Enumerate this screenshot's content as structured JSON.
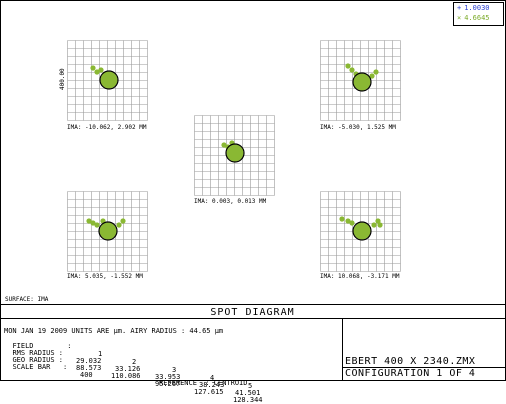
{
  "legend": {
    "rows": [
      {
        "marker": "+",
        "value": "1.0030",
        "color": "#2b3fd1"
      },
      {
        "marker": "×",
        "value": "4.6645",
        "color": "#7cab2a"
      }
    ]
  },
  "spots": [
    {
      "label": "IMA: -10.062, 2.902 MM"
    },
    {
      "label": "IMA: -5.030, 1.525 MM"
    },
    {
      "label": "IMA: 0.003, 0.013 MM"
    },
    {
      "label": "IMA: 5.035, -1.552 MM"
    },
    {
      "label": "IMA: 10.068, -3.171 MM"
    }
  ],
  "scale_label": "400.00",
  "surface": "SURFACE: IMA",
  "title": "SPOT DIAGRAM",
  "info": {
    "line1": "MON JAN 19 2009  UNITS ARE µm.  AIRY RADIUS : 44.65 µm",
    "field_label": "FIELD        :",
    "field_values": [
      "1",
      "2",
      "3",
      "4",
      "5"
    ],
    "rms_label": "RMS RADIUS :",
    "rms_values": [
      "29.032",
      "33.126",
      "33.953",
      "38.243",
      "41.501"
    ],
    "geo_label": "GEO RADIUS :",
    "geo_values": [
      "88.573",
      "110.086",
      "95.267",
      "127.615",
      "128.344"
    ],
    "scale_label": "SCALE BAR   :",
    "scale_value": "400",
    "reference": "REFERENCE  : CENTROID"
  },
  "lens": {
    "name": "EBERT 400 X 2340.ZMX",
    "config": "CONFIGURATION 1 OF 4"
  },
  "colors": {
    "spot": "#8ab833",
    "spot_dark": "#6a9524",
    "grid": "#9a9a9a"
  }
}
